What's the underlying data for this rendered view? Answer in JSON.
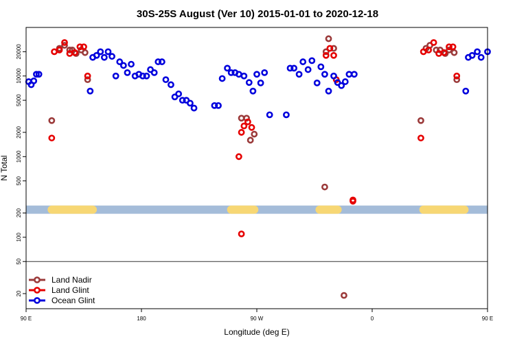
{
  "chart_data": {
    "type": "scatter",
    "title": "30S-25S August (Ver 10)   2015-01-01 to 2020-12-18",
    "xlabel": "Longitude (deg E)",
    "ylabel": "N Total",
    "y_scale": "log",
    "xlim": [
      90,
      450
    ],
    "ylim": [
      13,
      40000
    ],
    "x_ticks": [
      {
        "value": 90,
        "label": "90 E"
      },
      {
        "value": 180,
        "label": "180"
      },
      {
        "value": 270,
        "label": "90 W"
      },
      {
        "value": 360,
        "label": "0"
      },
      {
        "value": 450,
        "label": "90 E"
      },
      {
        "value": 540,
        "label": "180"
      }
    ],
    "y_ticks": [
      {
        "value": 20,
        "label": "20"
      },
      {
        "value": 50,
        "label": "50"
      },
      {
        "value": 100,
        "label": "100"
      },
      {
        "value": 200,
        "label": "200"
      },
      {
        "value": 500,
        "label": "500"
      },
      {
        "value": 1000,
        "label": "1000"
      },
      {
        "value": 2000,
        "label": "2000"
      },
      {
        "value": 5000,
        "label": "5000"
      },
      {
        "value": 10000,
        "label": "10000"
      },
      {
        "value": 20000,
        "label": "20000"
      }
    ],
    "reference_line_y": 50,
    "band": {
      "y": 220,
      "color": "#a4bcd9",
      "land_color": "#f7d774",
      "land_segments": [
        [
          110,
          142
        ],
        [
          250,
          268
        ],
        [
          319,
          333
        ],
        [
          400,
          432
        ]
      ]
    },
    "series": [
      {
        "name": "Land Nadir",
        "color": "#9b3a3a",
        "points": [
          [
            110,
            2800
          ],
          [
            116,
            22000
          ],
          [
            120,
            24000
          ],
          [
            124,
            21000
          ],
          [
            126,
            21000
          ],
          [
            129,
            19000
          ],
          [
            133,
            21000
          ],
          [
            136,
            19500
          ],
          [
            138,
            9000
          ],
          [
            258,
            3000
          ],
          [
            262,
            3000
          ],
          [
            265,
            1600
          ],
          [
            268,
            1900
          ],
          [
            323,
            420
          ],
          [
            324,
            20000
          ],
          [
            326,
            29000
          ],
          [
            330,
            22000
          ],
          [
            338,
            19
          ],
          [
            398,
            2800
          ],
          [
            402,
            22000
          ],
          [
            405,
            24000
          ],
          [
            410,
            21000
          ],
          [
            413,
            21000
          ],
          [
            417,
            19000
          ],
          [
            420,
            21000
          ],
          [
            424,
            19500
          ],
          [
            426,
            9000
          ]
        ]
      },
      {
        "name": "Land Glint",
        "color": "#e60000",
        "points": [
          [
            110,
            1700
          ],
          [
            112,
            20000
          ],
          [
            116,
            21000
          ],
          [
            120,
            26000
          ],
          [
            124,
            19000
          ],
          [
            128,
            19500
          ],
          [
            132,
            23000
          ],
          [
            135,
            23000
          ],
          [
            138,
            10000
          ],
          [
            256,
            1000
          ],
          [
            258,
            2000
          ],
          [
            260,
            2400
          ],
          [
            263,
            2700
          ],
          [
            266,
            2300
          ],
          [
            258,
            110
          ],
          [
            324,
            18000
          ],
          [
            327,
            22000
          ],
          [
            330,
            18000
          ],
          [
            332,
            9000
          ],
          [
            345,
            280
          ],
          [
            345,
            290
          ],
          [
            398,
            1700
          ],
          [
            400,
            20000
          ],
          [
            404,
            21000
          ],
          [
            408,
            26000
          ],
          [
            412,
            19000
          ],
          [
            416,
            19500
          ],
          [
            420,
            23000
          ],
          [
            423,
            23000
          ],
          [
            426,
            10000
          ]
        ]
      },
      {
        "name": "Ocean Glint",
        "color": "#0000dd",
        "points": [
          [
            92,
            8500
          ],
          [
            94,
            7800
          ],
          [
            96,
            8700
          ],
          [
            98,
            10500
          ],
          [
            100,
            10500
          ],
          [
            140,
            6500
          ],
          [
            142,
            17000
          ],
          [
            145,
            18000
          ],
          [
            148,
            20000
          ],
          [
            151,
            17000
          ],
          [
            154,
            20000
          ],
          [
            157,
            17500
          ],
          [
            160,
            10000
          ],
          [
            163,
            15000
          ],
          [
            166,
            13500
          ],
          [
            169,
            11000
          ],
          [
            172,
            14000
          ],
          [
            175,
            10000
          ],
          [
            178,
            10500
          ],
          [
            181,
            10000
          ],
          [
            184,
            10000
          ],
          [
            187,
            12000
          ],
          [
            190,
            11000
          ],
          [
            193,
            15000
          ],
          [
            196,
            15000
          ],
          [
            199,
            9000
          ],
          [
            203,
            7800
          ],
          [
            206,
            5500
          ],
          [
            209,
            6000
          ],
          [
            212,
            5000
          ],
          [
            215,
            5000
          ],
          [
            218,
            4600
          ],
          [
            221,
            4000
          ],
          [
            237,
            4300
          ],
          [
            240,
            4300
          ],
          [
            243,
            9300
          ],
          [
            247,
            12500
          ],
          [
            250,
            11000
          ],
          [
            253,
            11000
          ],
          [
            256,
            10500
          ],
          [
            260,
            10000
          ],
          [
            264,
            8300
          ],
          [
            267,
            6500
          ],
          [
            270,
            10500
          ],
          [
            273,
            8200
          ],
          [
            276,
            11000
          ],
          [
            280,
            3300
          ],
          [
            293,
            3300
          ],
          [
            296,
            12500
          ],
          [
            299,
            12500
          ],
          [
            303,
            10500
          ],
          [
            306,
            15000
          ],
          [
            310,
            12000
          ],
          [
            313,
            15500
          ],
          [
            317,
            8200
          ],
          [
            320,
            13000
          ],
          [
            323,
            10500
          ],
          [
            326,
            6500
          ],
          [
            330,
            10000
          ],
          [
            333,
            8300
          ],
          [
            336,
            7600
          ],
          [
            339,
            8500
          ],
          [
            342,
            10500
          ],
          [
            346,
            10500
          ],
          [
            433,
            6500
          ],
          [
            435,
            17000
          ],
          [
            438,
            18000
          ],
          [
            442,
            20000
          ],
          [
            445,
            17000
          ],
          [
            450,
            20000
          ]
        ]
      }
    ],
    "legend_position": "bottom-left"
  }
}
